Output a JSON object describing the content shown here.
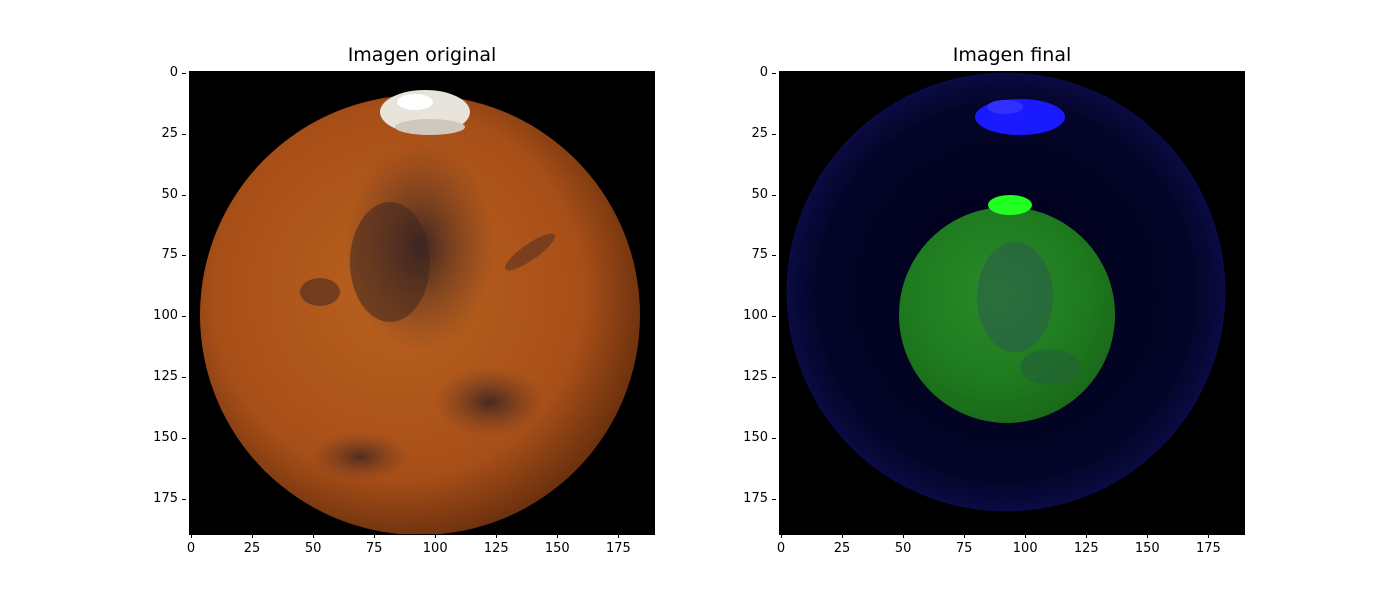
{
  "panels": [
    {
      "title": "Imagen original",
      "image_description_icon": "mars-image",
      "colors": {
        "surface": "#b4561e",
        "dark_region": "#4a2a20",
        "polar_cap": "#e8e4dc",
        "background": "#000000"
      }
    },
    {
      "title": "Imagen final",
      "image_description_icon": "processed-mars-image",
      "colors": {
        "outer_ring": "#0a0a3a",
        "inner_disc": "#1f7a1f",
        "cap_blue": "#1a1aff",
        "cap_green": "#22ff22",
        "background": "#000000"
      }
    }
  ],
  "axes": {
    "xticks": [
      "0",
      "25",
      "50",
      "75",
      "100",
      "125",
      "150",
      "175"
    ],
    "yticks": [
      "0",
      "25",
      "50",
      "75",
      "100",
      "125",
      "150",
      "175"
    ],
    "xlim": [
      0,
      190
    ],
    "ylim": [
      190,
      0
    ]
  }
}
